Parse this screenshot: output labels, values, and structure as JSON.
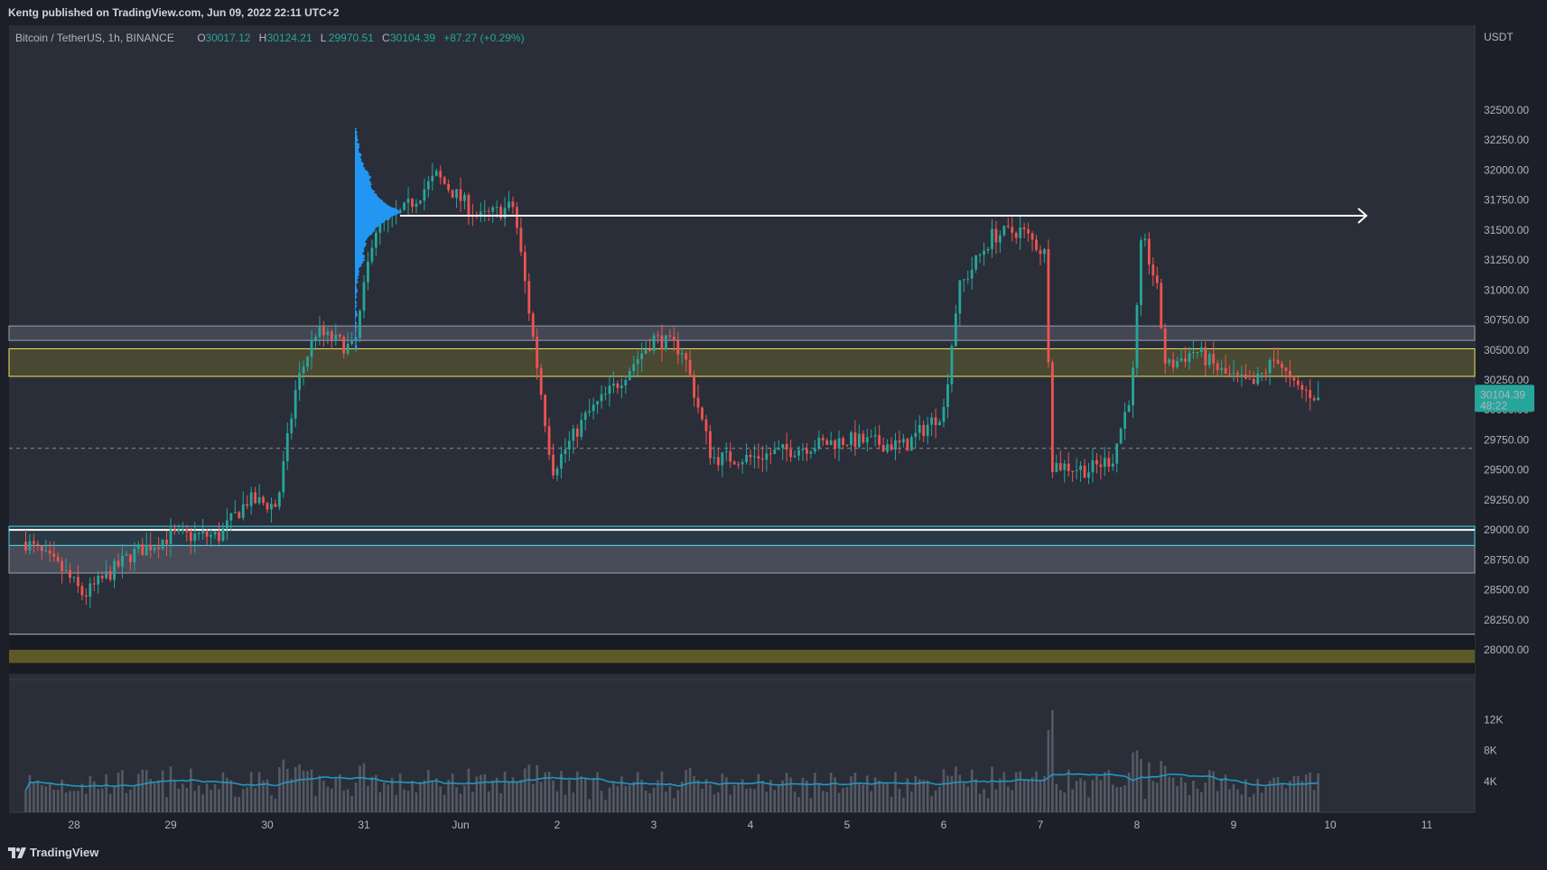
{
  "header": {
    "publish_text": "Kentg published on TradingView.com, Jun 09, 2022 22:11 UTC+2"
  },
  "footer": {
    "brand_label": "TradingView",
    "logo_icon": "tradingview-logo-icon"
  },
  "legend": {
    "symbol": "Bitcoin / TetherUS, 1h, BINANCE",
    "o_label": "O",
    "o_value": "30017.12",
    "h_label": "H",
    "h_value": "30124.21",
    "l_label": "L",
    "l_value": "29970.51",
    "c_label": "C",
    "c_value": "30104.39",
    "change": "+87.27 (+0.29%)"
  },
  "price_axis": {
    "currency": "USDT",
    "last_price": "30104.39",
    "countdown": "48:22"
  },
  "colors": {
    "background": "#2a2e39",
    "up": "#26a69a",
    "down": "#ef5350",
    "volume_bar": "#5d606b",
    "volume_ma": "#2196c3",
    "volume_profile": "#2196f3",
    "zone_yellow": "#f5e15a",
    "zone_cyan": "#4dd0e1"
  },
  "chart_data": {
    "type": "candlestick",
    "title": "",
    "symbol": "BTCUSDT",
    "interval": "1h",
    "ylim": [
      27800,
      32750
    ],
    "y_ticks": [
      "32500.00",
      "32250.00",
      "32000.00",
      "31750.00",
      "31500.00",
      "31250.00",
      "31000.00",
      "30750.00",
      "30500.00",
      "30250.00",
      "30000.00",
      "29750.00",
      "29500.00",
      "29250.00",
      "29000.00",
      "28750.00",
      "28500.00",
      "28250.00",
      "28000.00"
    ],
    "x_ticks": [
      "28",
      "29",
      "30",
      "31",
      "Jun",
      "2",
      "3",
      "4",
      "5",
      "6",
      "7",
      "8",
      "9",
      "10",
      "11"
    ],
    "volume_ticks": [
      "12K",
      "8K",
      "4K"
    ],
    "anchors": [
      {
        "d": 27.5,
        "p": 28900
      },
      {
        "d": 27.9,
        "p": 28650
      },
      {
        "d": 28.1,
        "p": 28450
      },
      {
        "d": 28.6,
        "p": 28800
      },
      {
        "d": 29.0,
        "p": 28950
      },
      {
        "d": 29.5,
        "p": 28950
      },
      {
        "d": 29.8,
        "p": 29250
      },
      {
        "d": 30.1,
        "p": 29200
      },
      {
        "d": 30.3,
        "p": 30200
      },
      {
        "d": 30.5,
        "p": 30650
      },
      {
        "d": 30.9,
        "p": 30500
      },
      {
        "d": 31.1,
        "p": 31500
      },
      {
        "d": 31.4,
        "p": 31650
      },
      {
        "d": 31.75,
        "p": 31950
      },
      {
        "d": 32.2,
        "p": 31600
      },
      {
        "d": 32.55,
        "p": 31700
      },
      {
        "d": 32.75,
        "p": 30600
      },
      {
        "d": 32.95,
        "p": 29500
      },
      {
        "d": 33.3,
        "p": 29950
      },
      {
        "d": 33.6,
        "p": 30200
      },
      {
        "d": 34.0,
        "p": 30600
      },
      {
        "d": 34.3,
        "p": 30500
      },
      {
        "d": 34.6,
        "p": 29600
      },
      {
        "d": 35.0,
        "p": 29600
      },
      {
        "d": 35.6,
        "p": 29700
      },
      {
        "d": 36.0,
        "p": 29750
      },
      {
        "d": 36.6,
        "p": 29700
      },
      {
        "d": 37.0,
        "p": 30000
      },
      {
        "d": 37.15,
        "p": 31000
      },
      {
        "d": 37.5,
        "p": 31450
      },
      {
        "d": 37.8,
        "p": 31500
      },
      {
        "d": 38.05,
        "p": 31300
      },
      {
        "d": 38.12,
        "p": 29550
      },
      {
        "d": 38.5,
        "p": 29500
      },
      {
        "d": 38.75,
        "p": 29600
      },
      {
        "d": 38.95,
        "p": 30200
      },
      {
        "d": 39.05,
        "p": 31450
      },
      {
        "d": 39.2,
        "p": 31050
      },
      {
        "d": 39.3,
        "p": 30350
      },
      {
        "d": 39.6,
        "p": 30500
      },
      {
        "d": 39.9,
        "p": 30300
      },
      {
        "d": 40.2,
        "p": 30200
      },
      {
        "d": 40.45,
        "p": 30450
      },
      {
        "d": 40.6,
        "p": 30200
      },
      {
        "d": 40.9,
        "p": 30104.39
      }
    ],
    "annotations": {
      "poc_arrow_price": 31620,
      "yellow_zone": [
        30280,
        30510
      ],
      "gray_zone_upper": [
        30580,
        30700
      ],
      "cyan_zone": [
        28870,
        29030
      ],
      "white_line_low": 29000,
      "gray_zone_lower": [
        28640,
        28870
      ],
      "dashed_line": 29680,
      "lower_line": 28130,
      "olive_zone_bottom": [
        27890,
        28000
      ],
      "volume_profile_range": [
        30500,
        32350
      ],
      "volume_profile_peak": 31650
    }
  }
}
